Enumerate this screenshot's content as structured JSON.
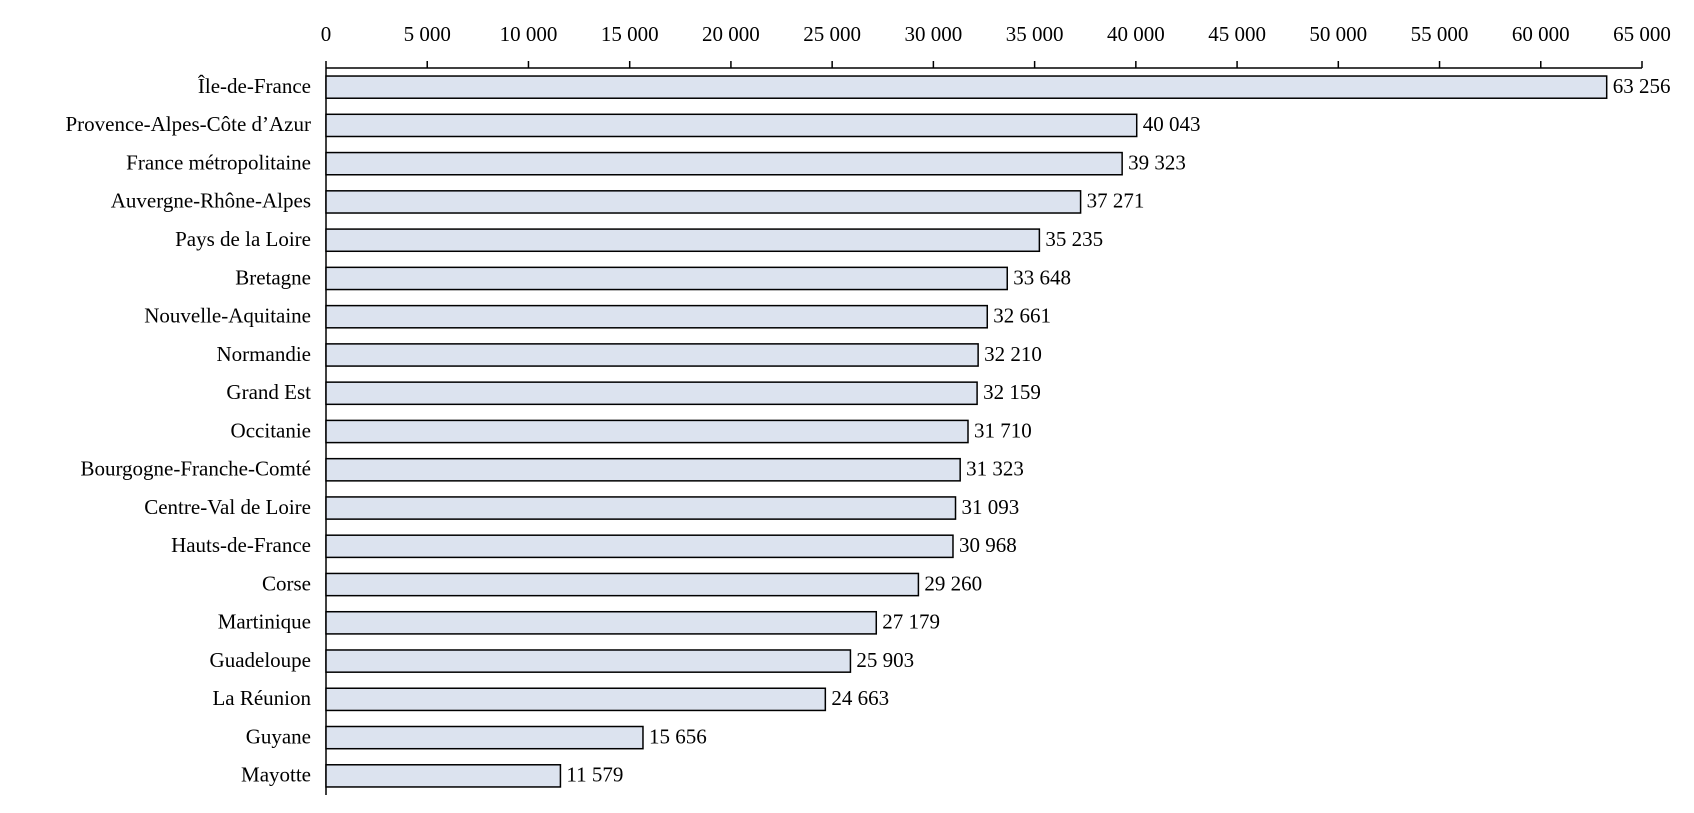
{
  "chart_data": {
    "type": "hbar",
    "categories": [
      "Île-de-France",
      "Provence-Alpes-Côte d’Azur",
      "France métropolitaine",
      "Auvergne-Rhône-Alpes",
      "Pays de la Loire",
      "Bretagne",
      "Nouvelle-Aquitaine",
      "Normandie",
      "Grand Est",
      "Occitanie",
      "Bourgogne-Franche-Comté",
      "Centre-Val de Loire",
      "Hauts-de-France",
      "Corse",
      "Martinique",
      "Guadeloupe",
      "La Réunion",
      "Guyane",
      "Mayotte"
    ],
    "values": [
      63256,
      40043,
      39323,
      37271,
      35235,
      33648,
      32661,
      32210,
      32159,
      31710,
      31323,
      31093,
      30968,
      29260,
      27179,
      25903,
      24663,
      15656,
      11579
    ],
    "value_labels": [
      "63 256",
      "40 043",
      "39 323",
      "37 271",
      "35 235",
      "33 648",
      "32 661",
      "32 210",
      "32 159",
      "31 710",
      "31 323",
      "31 093",
      "30 968",
      "29 260",
      "27 179",
      "25 903",
      "24 663",
      "15 656",
      "11 579"
    ],
    "color": "#dce3ef",
    "xlim": [
      0,
      65000
    ],
    "xticks": [
      0,
      {
        "value": 5000,
        "label": "5 000"
      },
      {
        "value": 10000,
        "label": "10 000"
      },
      {
        "value": 15000,
        "label": "15 000"
      },
      {
        "value": 20000,
        "label": "20 000"
      },
      {
        "value": 25000,
        "label": "25 000"
      },
      {
        "value": 30000,
        "label": "30 000"
      },
      {
        "value": 35000,
        "label": "35 000"
      },
      {
        "value": 40000,
        "label": "40 000"
      },
      {
        "value": 45000,
        "label": "45 000"
      },
      {
        "value": 50000,
        "label": "50 000"
      },
      {
        "value": 55000,
        "label": "55 000"
      },
      {
        "value": 60000,
        "label": "60 000"
      },
      {
        "value": 65000,
        "label": "65 000"
      }
    ],
    "grid": false
  }
}
